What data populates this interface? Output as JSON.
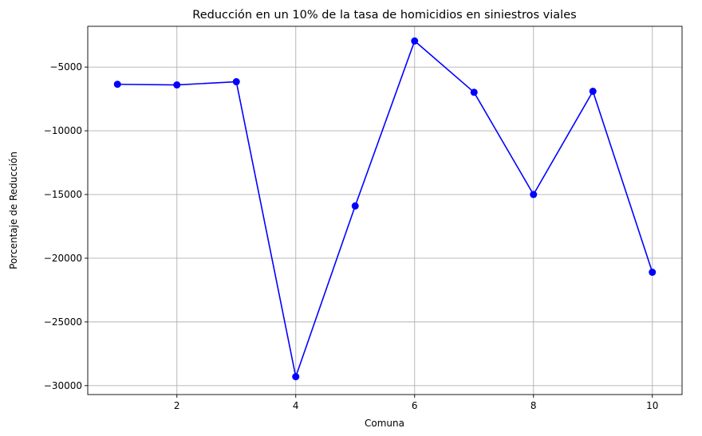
{
  "chart_data": {
    "type": "line",
    "title": "Reducción en un 10% de la tasa de homicidios en siniestros viales",
    "xlabel": "Comuna",
    "ylabel": "Porcentaje de Reducción",
    "x": [
      1,
      2,
      3,
      4,
      5,
      6,
      7,
      8,
      9,
      10
    ],
    "series": [
      {
        "values": [
          -6350,
          -6400,
          -6150,
          -29300,
          -15900,
          -2950,
          -6980,
          -15000,
          -6900,
          -21100
        ],
        "color": "#0000ff",
        "marker": "circle"
      }
    ],
    "xlim": [
      0.5,
      10.5
    ],
    "ylim": [
      -30700,
      -1800
    ],
    "xticks": [
      2,
      4,
      6,
      8,
      10
    ],
    "yticks": [
      -30000,
      -25000,
      -20000,
      -15000,
      -10000,
      -5000
    ],
    "xtick_labels": [
      "2",
      "4",
      "6",
      "8",
      "10"
    ],
    "ytick_labels": [
      "−30000",
      "−25000",
      "−20000",
      "−15000",
      "−10000",
      "−5000"
    ],
    "grid": true,
    "grid_color": "#b0b0b0"
  }
}
